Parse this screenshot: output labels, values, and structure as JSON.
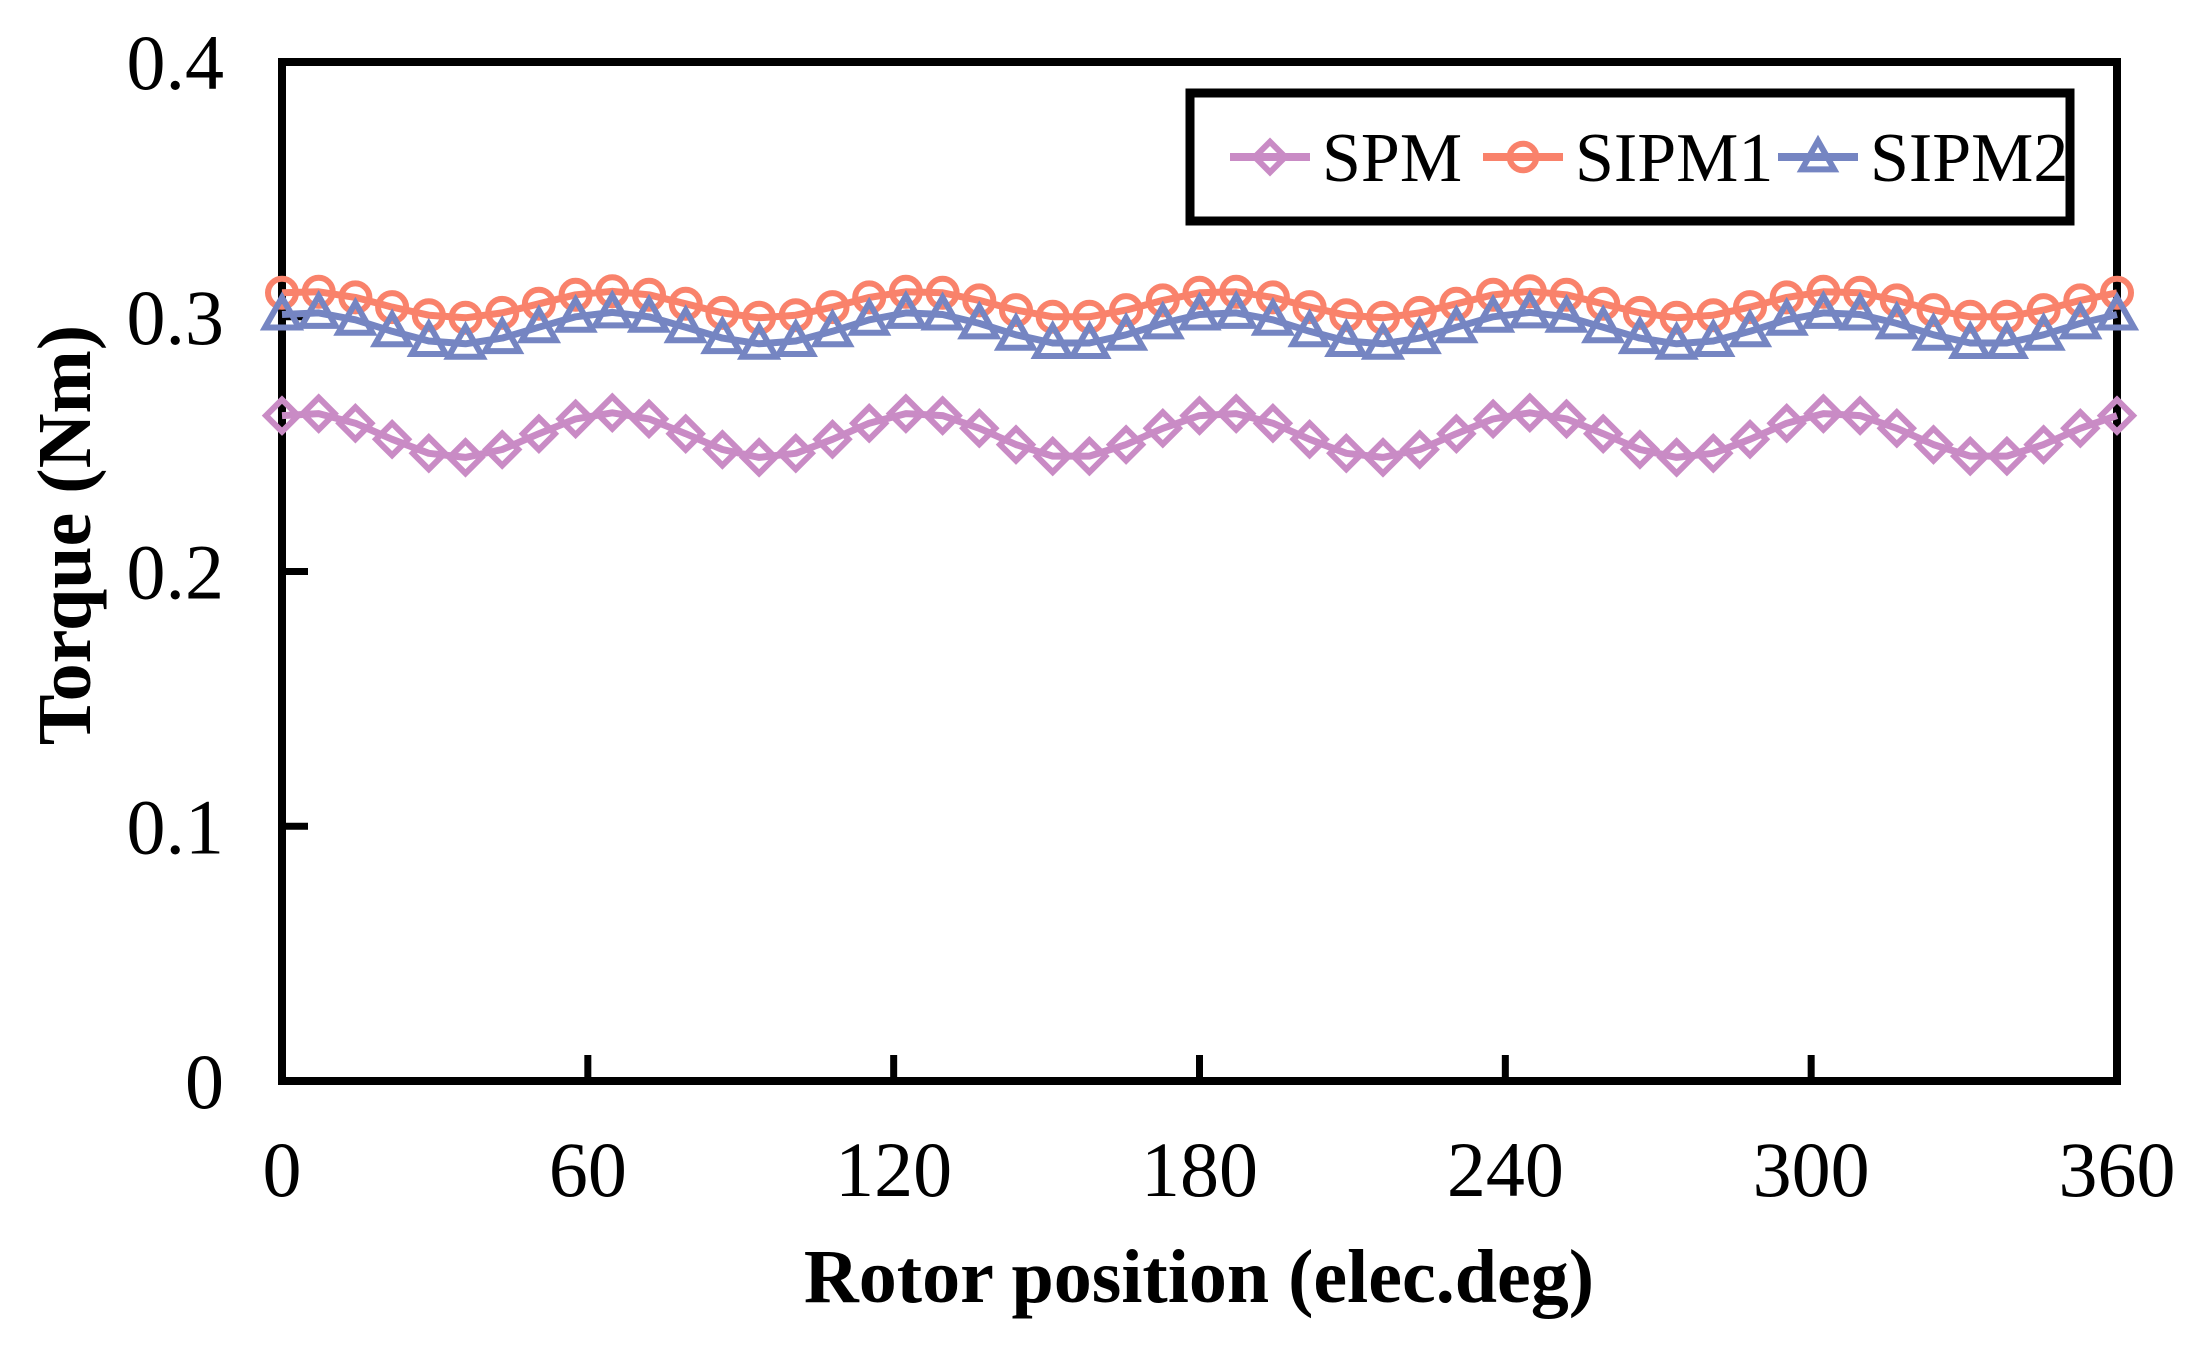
{
  "figure": {
    "background": "#FFFFFF",
    "axis_color": "#000000"
  },
  "chart_data": {
    "type": "line",
    "title": "",
    "xlabel": "Rotor position (elec.deg)",
    "ylabel": "Torque (Nm)",
    "xlim": [
      0,
      360
    ],
    "ylim": [
      0,
      0.4
    ],
    "x_ticks": [
      0,
      60,
      120,
      180,
      240,
      300,
      360
    ],
    "y_ticks": [
      0,
      0.1,
      0.2,
      0.3,
      0.4
    ],
    "y_tick_labels": [
      "0",
      "0.1",
      "0.2",
      "0.3",
      "0.4"
    ],
    "grid": false,
    "legend_position": "top-right-inside",
    "x": [
      0,
      7.2,
      14.4,
      21.6,
      28.8,
      36,
      43.2,
      50.4,
      57.6,
      64.8,
      72,
      79.2,
      86.4,
      93.6,
      100.8,
      108,
      115.2,
      122.4,
      129.6,
      136.8,
      144,
      151.2,
      158.4,
      165.6,
      172.8,
      180,
      187.2,
      194.4,
      201.6,
      208.8,
      216,
      223.2,
      230.4,
      237.6,
      244.8,
      252,
      259.2,
      266.4,
      273.6,
      280.8,
      288,
      295.2,
      302.4,
      309.6,
      316.8,
      324,
      331.2,
      338.4,
      345.6,
      352.8,
      360
    ],
    "series": [
      {
        "name": "SPM",
        "marker": "diamond",
        "color": "#C98BC5",
        "values": [
          0.2612,
          0.262,
          0.2582,
          0.2519,
          0.2464,
          0.2448,
          0.2479,
          0.2541,
          0.2599,
          0.2623,
          0.2599,
          0.2541,
          0.2479,
          0.2448,
          0.2464,
          0.2519,
          0.2582,
          0.262,
          0.2612,
          0.2562,
          0.2498,
          0.2453,
          0.2453,
          0.2498,
          0.2562,
          0.2612,
          0.262,
          0.2582,
          0.2519,
          0.2464,
          0.2448,
          0.2479,
          0.2541,
          0.2599,
          0.2623,
          0.2599,
          0.2541,
          0.2479,
          0.2448,
          0.2464,
          0.2519,
          0.2582,
          0.262,
          0.2612,
          0.2562,
          0.2498,
          0.2453,
          0.2453,
          0.2498,
          0.2562,
          0.2612
        ]
      },
      {
        "name": "SIPM1",
        "marker": "circle",
        "color": "#F9826B",
        "values": [
          0.3094,
          0.3098,
          0.3076,
          0.3038,
          0.3006,
          0.2996,
          0.3015,
          0.3051,
          0.3086,
          0.31,
          0.3086,
          0.3051,
          0.3015,
          0.2996,
          0.3006,
          0.3038,
          0.3076,
          0.3098,
          0.3094,
          0.3064,
          0.3026,
          0.3,
          0.3,
          0.3026,
          0.3064,
          0.3094,
          0.3098,
          0.3076,
          0.3038,
          0.3006,
          0.2996,
          0.3015,
          0.3051,
          0.3086,
          0.31,
          0.3086,
          0.3051,
          0.3015,
          0.2996,
          0.3006,
          0.3038,
          0.3076,
          0.3098,
          0.3094,
          0.3064,
          0.3026,
          0.3,
          0.3,
          0.3026,
          0.3064,
          0.3094
        ]
      },
      {
        "name": "SIPM2",
        "marker": "triangle",
        "color": "#7585C2",
        "values": [
          0.3009,
          0.3015,
          0.2988,
          0.2943,
          0.2905,
          0.2894,
          0.2916,
          0.2959,
          0.3,
          0.3017,
          0.3,
          0.2959,
          0.2916,
          0.2894,
          0.2905,
          0.2943,
          0.2988,
          0.3015,
          0.3009,
          0.2974,
          0.2929,
          0.2897,
          0.2897,
          0.2929,
          0.2974,
          0.3009,
          0.3015,
          0.2988,
          0.2943,
          0.2905,
          0.2894,
          0.2916,
          0.2959,
          0.3,
          0.3017,
          0.3,
          0.2959,
          0.2916,
          0.2894,
          0.2905,
          0.2943,
          0.2988,
          0.3015,
          0.3009,
          0.2974,
          0.2929,
          0.2897,
          0.2897,
          0.2929,
          0.2974,
          0.3009
        ]
      }
    ]
  }
}
